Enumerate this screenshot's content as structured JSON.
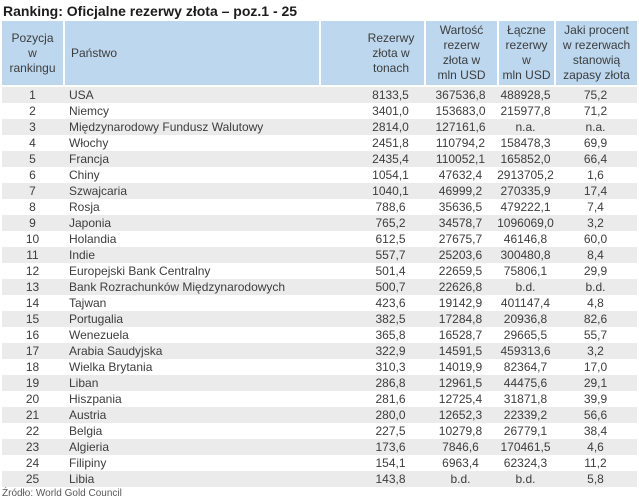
{
  "title": "Ranking: Oficjalne rezerwy złota – poz.1 - 25",
  "source": "Źródło: World Gold Council",
  "colors": {
    "header_bg": "#bcd7ee",
    "row_alt_bg": "#ebebeb",
    "row_bg": "#ffffff",
    "title_color": "#1c1c1c",
    "text_color": "#3d3d3d"
  },
  "chart_data": {
    "type": "table",
    "title": "Ranking: Oficjalne rezerwy złota – poz.1 - 25",
    "source": "Źródło: World Gold Council",
    "headers": [
      {
        "title": "Pozycja w rankingu",
        "lines": [
          "Pozycja",
          "w",
          "rankingu"
        ]
      },
      {
        "title": "Państwo",
        "lines": [
          "Państwo"
        ]
      },
      {
        "title": "Rezerwy złota w tonach",
        "lines": [
          "Rezerwy",
          "złota w",
          "tonach"
        ]
      },
      {
        "title": "Wartość rezerw złota w mln USD",
        "lines": [
          "Wartość",
          "rezerw",
          "złota w",
          "mln USD"
        ]
      },
      {
        "title": "Łączne rezerwy w mln USD",
        "lines": [
          "Łączne",
          "rezerwy w",
          "mln USD"
        ]
      },
      {
        "title": "Jaki procent w rezerwach stanowią zapasy złota",
        "lines": [
          "Jaki procent",
          "w rezerwach",
          "stanowią",
          "zapasy złota"
        ]
      }
    ],
    "rows": [
      [
        "1",
        "USA",
        "8133,5",
        "367536,8",
        "488928,5",
        "75,2"
      ],
      [
        "2",
        "Niemcy",
        "3401,0",
        "153683,0",
        "215977,8",
        "71,2"
      ],
      [
        "3",
        "Międzynarodowy Fundusz Walutowy",
        "2814,0",
        "127161,6",
        "n.a.",
        "n.a."
      ],
      [
        "4",
        "Włochy",
        "2451,8",
        "110794,2",
        "158478,3",
        "69,9"
      ],
      [
        "5",
        "Francja",
        "2435,4",
        "110052,1",
        "165852,0",
        "66,4"
      ],
      [
        "6",
        "Chiny",
        "1054,1",
        "47632,4",
        "2913705,2",
        "1,6"
      ],
      [
        "7",
        "Szwajcaria",
        "1040,1",
        "46999,2",
        "270335,9",
        "17,4"
      ],
      [
        "8",
        "Rosja",
        "788,6",
        "35636,5",
        "479222,1",
        "7,4"
      ],
      [
        "9",
        "Japonia",
        "765,2",
        "34578,7",
        "1096069,0",
        "3,2"
      ],
      [
        "10",
        "Holandia",
        "612,5",
        "27675,7",
        "46146,8",
        "60,0"
      ],
      [
        "11",
        "Indie",
        "557,7",
        "25203,6",
        "300480,8",
        "8,4"
      ],
      [
        "12",
        "Europejski Bank Centralny",
        "501,4",
        "22659,5",
        "75806,1",
        "29,9"
      ],
      [
        "13",
        "Bank Rozrachunków Międzynarodowych",
        "500,7",
        "22626,8",
        "b.d.",
        "b.d."
      ],
      [
        "14",
        "Tajwan",
        "423,6",
        "19142,9",
        "401147,4",
        "4,8"
      ],
      [
        "15",
        "Portugalia",
        "382,5",
        "17284,8",
        "20936,8",
        "82,6"
      ],
      [
        "16",
        "Wenezuela",
        "365,8",
        "16528,7",
        "29665,5",
        "55,7"
      ],
      [
        "17",
        "Arabia Saudyjska",
        "322,9",
        "14591,5",
        "459313,6",
        "3,2"
      ],
      [
        "18",
        "Wielka Brytania",
        "310,3",
        "14019,9",
        "82364,7",
        "17,0"
      ],
      [
        "19",
        "Liban",
        "286,8",
        "12961,5",
        "44475,6",
        "29,1"
      ],
      [
        "20",
        "Hiszpania",
        "281,6",
        "12725,4",
        "31871,8",
        "39,9"
      ],
      [
        "21",
        "Austria",
        "280,0",
        "12652,3",
        "22339,2",
        "56,6"
      ],
      [
        "22",
        "Belgia",
        "227,5",
        "10279,8",
        "26779,1",
        "38,4"
      ],
      [
        "23",
        "Algieria",
        "173,6",
        "7846,6",
        "170461,5",
        "4,6"
      ],
      [
        "24",
        "Filipiny",
        "154,1",
        "6963,4",
        "62324,3",
        "11,2"
      ],
      [
        "25",
        "Libia",
        "143,8",
        "b.d.",
        "b.d.",
        "5,8"
      ]
    ]
  }
}
